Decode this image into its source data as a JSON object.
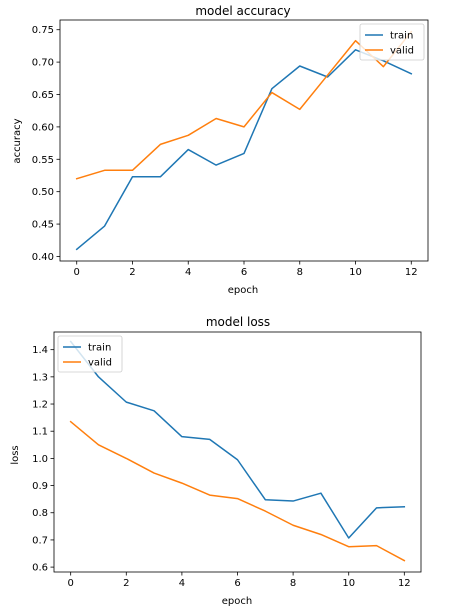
{
  "chart_data": [
    {
      "type": "line",
      "title": "model accuracy",
      "xlabel": "epoch",
      "ylabel": "accuracy",
      "x": [
        0,
        1,
        2,
        3,
        4,
        5,
        6,
        7,
        8,
        9,
        10,
        11,
        12
      ],
      "xlim": [
        -0.6,
        12.6
      ],
      "ylim": [
        0.393,
        0.765
      ],
      "xticks": [
        0,
        2,
        4,
        6,
        8,
        10,
        12
      ],
      "yticks": [
        0.4,
        0.45,
        0.5,
        0.55,
        0.6,
        0.65,
        0.7,
        0.75
      ],
      "ytick_labels": [
        "0.40",
        "0.45",
        "0.50",
        "0.55",
        "0.60",
        "0.65",
        "0.70",
        "0.75"
      ],
      "legend_position": "top-right",
      "grid": false,
      "series": [
        {
          "name": "train",
          "color": "#1f77b4",
          "values": [
            0.411,
            0.447,
            0.523,
            0.523,
            0.565,
            0.541,
            0.559,
            0.659,
            0.694,
            0.677,
            0.719,
            0.702,
            0.682
          ]
        },
        {
          "name": "valid",
          "color": "#ff7f0e",
          "values": [
            0.52,
            0.533,
            0.533,
            0.573,
            0.587,
            0.613,
            0.6,
            0.653,
            0.627,
            0.68,
            0.733,
            0.693,
            0.747
          ]
        }
      ]
    },
    {
      "type": "line",
      "title": "model loss",
      "xlabel": "epoch",
      "ylabel": "loss",
      "x": [
        0,
        1,
        2,
        3,
        4,
        5,
        6,
        7,
        8,
        9,
        10,
        11,
        12
      ],
      "xlim": [
        -0.6,
        12.6
      ],
      "ylim": [
        0.582,
        1.465
      ],
      "xticks": [
        0,
        2,
        4,
        6,
        8,
        10,
        12
      ],
      "yticks": [
        0.6,
        0.7,
        0.8,
        0.9,
        1.0,
        1.1,
        1.2,
        1.3,
        1.4
      ],
      "ytick_labels": [
        "0.6",
        "0.7",
        "0.8",
        "0.9",
        "1.0",
        "1.1",
        "1.2",
        "1.3",
        "1.4"
      ],
      "legend_position": "top-left",
      "grid": false,
      "series": [
        {
          "name": "train",
          "color": "#1f77b4",
          "values": [
            1.43,
            1.3,
            1.207,
            1.175,
            1.08,
            1.07,
            0.995,
            0.848,
            0.843,
            0.872,
            0.707,
            0.818,
            0.822
          ]
        },
        {
          "name": "valid",
          "color": "#ff7f0e",
          "values": [
            1.135,
            1.05,
            1.0,
            0.946,
            0.909,
            0.865,
            0.852,
            0.806,
            0.754,
            0.72,
            0.675,
            0.679,
            0.624
          ]
        }
      ]
    }
  ]
}
